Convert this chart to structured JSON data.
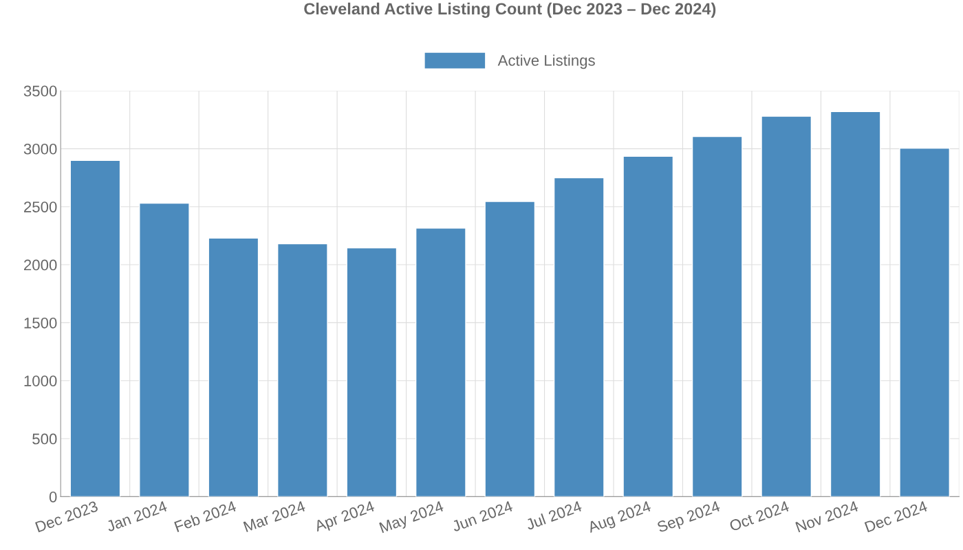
{
  "chart_data": {
    "type": "bar",
    "title": "Cleveland Active Listing Count (Dec 2023 – Dec 2024)",
    "categories": [
      "Dec 2023",
      "Jan 2024",
      "Feb 2024",
      "Mar 2024",
      "Apr 2024",
      "May 2024",
      "Jun 2024",
      "Jul 2024",
      "Aug 2024",
      "Sep 2024",
      "Oct 2024",
      "Nov 2024",
      "Dec 2024"
    ],
    "series": [
      {
        "name": "Active Listings",
        "color": "#4b8bbe",
        "values": [
          2900,
          2530,
          2230,
          2180,
          2145,
          2315,
          2545,
          2750,
          2935,
          3105,
          3280,
          3320,
          3005
        ]
      }
    ],
    "ylim": [
      0,
      3500
    ],
    "yticks": [
      0,
      500,
      1000,
      1500,
      2000,
      2500,
      3000,
      3500
    ],
    "grid": true,
    "legend": "top"
  }
}
